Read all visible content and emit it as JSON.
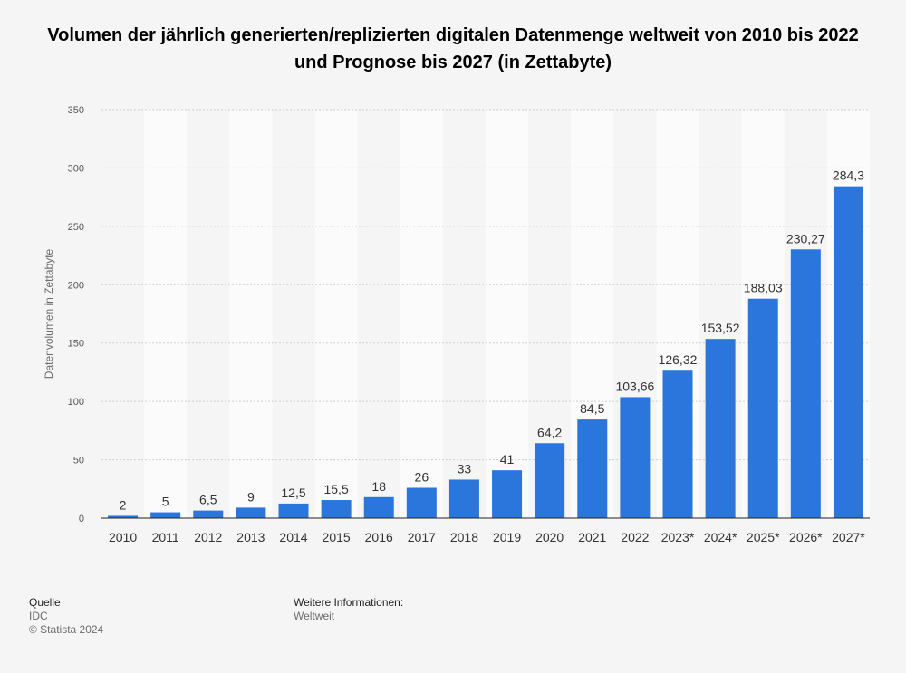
{
  "chart_data": {
    "type": "bar",
    "title": "Volumen der jährlich generierten/replizierten digitalen Datenmenge weltweit von 2010 bis 2022 und Prognose bis 2027 (in Zettabyte)",
    "xlabel": "",
    "ylabel": "Datenvolumen in Zettabyte",
    "ylim": [
      0,
      350
    ],
    "yticks": [
      0,
      50,
      100,
      150,
      200,
      250,
      300,
      350
    ],
    "grid": true,
    "categories": [
      "2010",
      "2011",
      "2012",
      "2013",
      "2014",
      "2015",
      "2016",
      "2017",
      "2018",
      "2019",
      "2020",
      "2021",
      "2022",
      "2023*",
      "2024*",
      "2025*",
      "2026*",
      "2027*"
    ],
    "values": [
      2,
      5,
      6.5,
      9,
      12.5,
      15.5,
      18,
      26,
      33,
      41,
      64.2,
      84.5,
      103.66,
      126.32,
      153.52,
      188.03,
      230.27,
      284.3
    ],
    "value_labels": [
      "2",
      "5",
      "6,5",
      "9",
      "12,5",
      "15,5",
      "18",
      "26",
      "33",
      "41",
      "64,2",
      "84,5",
      "103,66",
      "126,32",
      "153,52",
      "188,03",
      "230,27",
      "284,3"
    ],
    "bar_color": "#2a76dd"
  },
  "footer": {
    "source_heading": "Quelle",
    "source_name": "IDC",
    "copyright": "© Statista 2024",
    "info_heading": "Weitere Informationen:",
    "info_text": "Weltweit"
  }
}
